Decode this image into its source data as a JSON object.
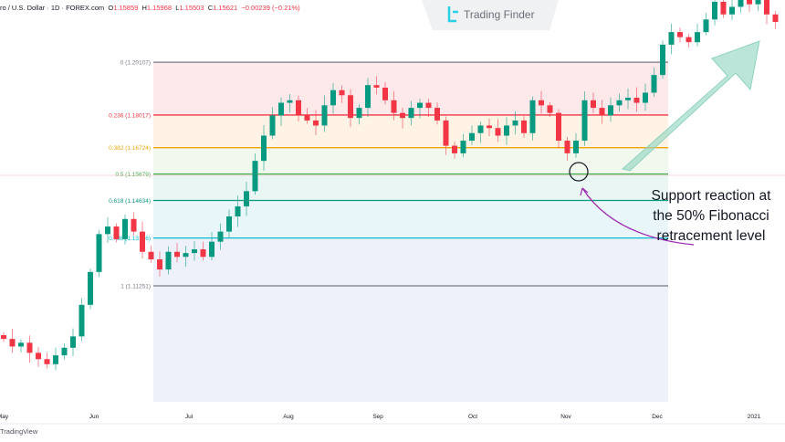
{
  "header": {
    "symbol": "ro / U.S. Dollar · 1D · FOREX.com",
    "o_label": "O",
    "o": "1.15859",
    "h_label": "H",
    "h": "1.15968",
    "l_label": "L",
    "l": "1.15503",
    "c_label": "C",
    "c": "1.15621",
    "change": "−0.00239 (−0.21%)"
  },
  "logo": {
    "text": "Trading Finder"
  },
  "annotation": {
    "lines": [
      "Support reaction at",
      "the 50% Fibonacci",
      "retracement level"
    ]
  },
  "footer": {
    "brand": "TradingView"
  },
  "colors": {
    "up": "#089981",
    "down": "#f23645",
    "arrow": "#8fd3bf",
    "curve": "#9c27b0"
  },
  "chart_data": {
    "type": "candlestick",
    "title": "EUR/USD 1D",
    "x_ticks": [
      "May",
      "Jun",
      "Jul",
      "Aug",
      "Sep",
      "Oct",
      "Nov",
      "Dec",
      "2021"
    ],
    "ylim": [
      1.0666,
      1.2257
    ],
    "current_price": 1.15621,
    "first_open": 1.093,
    "closes": [
      1.0915,
      1.0885,
      1.09,
      1.086,
      1.0835,
      1.0815,
      1.085,
      1.088,
      1.0925,
      1.105,
      1.118,
      1.133,
      1.136,
      1.131,
      1.139,
      1.134,
      1.126,
      1.123,
      1.119,
      1.126,
      1.124,
      1.1255,
      1.127,
      1.124,
      1.13,
      1.134,
      1.14,
      1.144,
      1.15,
      1.162,
      1.172,
      1.18,
      1.185,
      1.186,
      1.18,
      1.178,
      1.176,
      1.184,
      1.19,
      1.188,
      1.179,
      1.183,
      1.192,
      1.191,
      1.186,
      1.181,
      1.179,
      1.183,
      1.185,
      1.183,
      1.178,
      1.168,
      1.165,
      1.17,
      1.173,
      1.176,
      1.175,
      1.172,
      1.176,
      1.178,
      1.173,
      1.186,
      1.184,
      1.181,
      1.17,
      1.165,
      1.17,
      1.186,
      1.183,
      1.18,
      1.184,
      1.186,
      1.187,
      1.185,
      1.189,
      1.196,
      1.208,
      1.213,
      1.211,
      1.209,
      1.213,
      1.218,
      1.225,
      1.22,
      1.223,
      1.226,
      1.224,
      1.227,
      1.22,
      1.217
    ],
    "fibonacci": [
      {
        "ratio": "0",
        "price": "1.20107",
        "label": "0 (1.20107)",
        "value": 1.20107,
        "color": "#787b86"
      },
      {
        "ratio": "0.236",
        "price": "1.18017",
        "label": "0.236 (1.18017)",
        "value": 1.18017,
        "color": "#f23645"
      },
      {
        "ratio": "0.382",
        "price": "1.16724",
        "label": "0.382 (1.16724)",
        "value": 1.16724,
        "color": "#f0a30a"
      },
      {
        "ratio": "0.5",
        "price": "1.15679",
        "label": "0.5 (1.15679)",
        "value": 1.15679,
        "color": "#4caf50"
      },
      {
        "ratio": "0.618",
        "price": "1.14634",
        "label": "0.618 (1.14634)",
        "value": 1.14634,
        "color": "#089981"
      },
      {
        "ratio": "0.786",
        "price": "1.13146",
        "label": "0.786 (1.13146)",
        "value": 1.13146,
        "color": "#00bcd4"
      },
      {
        "ratio": "1",
        "price": "1.11251",
        "label": "1 (1.11251)",
        "value": 1.11251,
        "color": "#787b86"
      }
    ],
    "fib_fills": [
      "#fde8ea",
      "#fef3e4",
      "#f1f8ee",
      "#eaf6f4",
      "#e8f6f9",
      "#eef1fa"
    ]
  }
}
